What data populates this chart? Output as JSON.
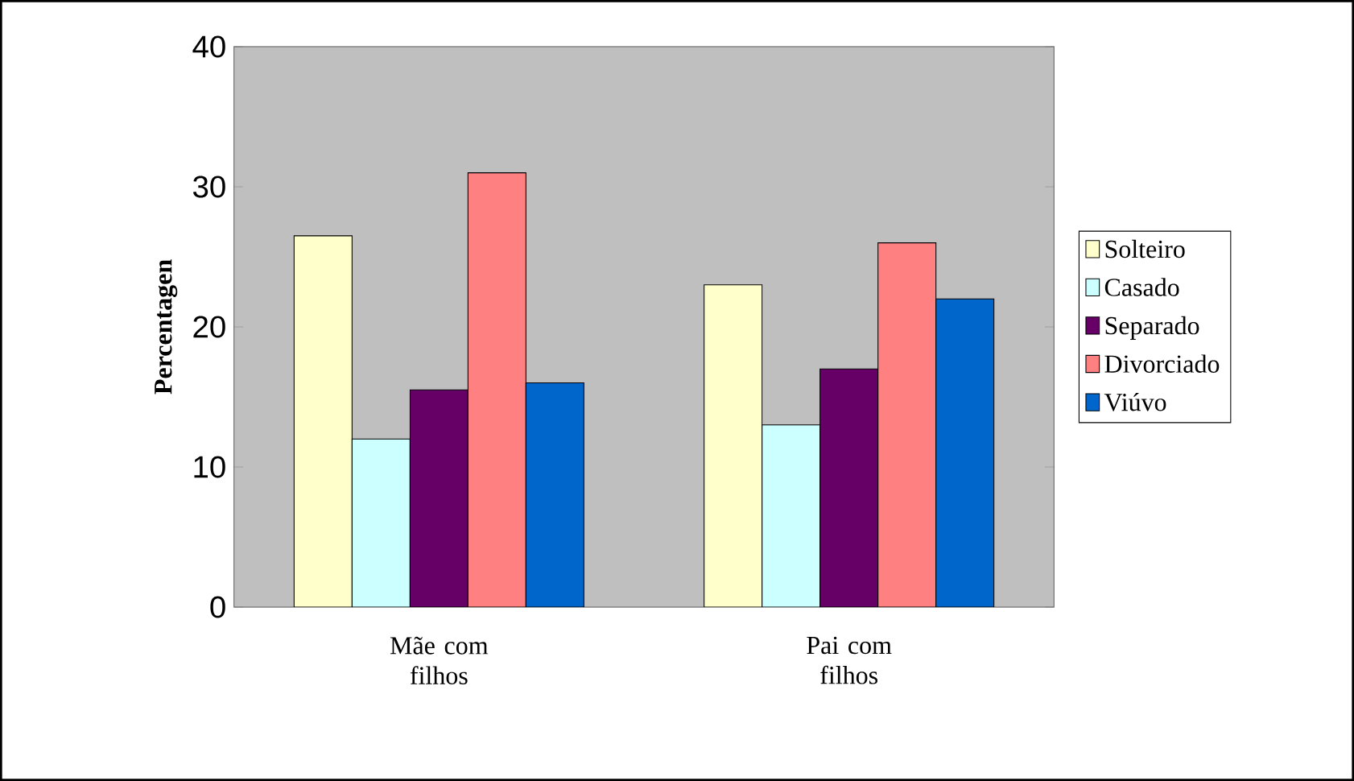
{
  "chart_data": {
    "type": "bar",
    "ylabel": "Percentagen",
    "categories": [
      "Mãe com filhos",
      "Pai com filhos"
    ],
    "series": [
      {
        "name": "Solteiro",
        "color": "#ffffcc",
        "values": [
          26.5,
          23
        ]
      },
      {
        "name": "Casado",
        "color": "#ccffff",
        "values": [
          12,
          13
        ]
      },
      {
        "name": "Separado",
        "color": "#660066",
        "values": [
          15.5,
          17
        ]
      },
      {
        "name": "Divorciado",
        "color": "#ff8080",
        "values": [
          31,
          26
        ]
      },
      {
        "name": "Viúvo",
        "color": "#0066cc",
        "values": [
          16,
          22
        ]
      }
    ],
    "ylim": [
      0,
      40
    ],
    "yticks": [
      0,
      10,
      20,
      30,
      40
    ],
    "grid": "y",
    "legend": "right"
  }
}
